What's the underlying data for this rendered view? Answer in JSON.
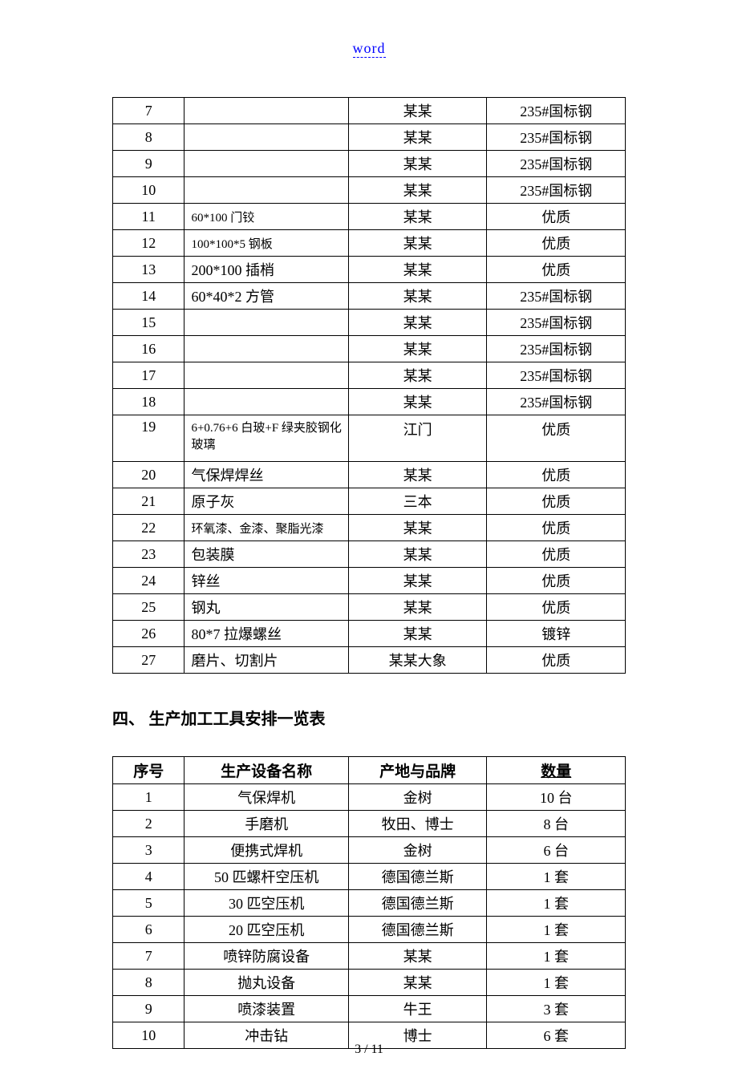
{
  "header": {
    "link_text": "word"
  },
  "table1": {
    "rows": [
      {
        "no": "7",
        "desc": "",
        "desc_small": false,
        "col3": "某某",
        "col4": "235#国标钢"
      },
      {
        "no": "8",
        "desc": "",
        "desc_small": false,
        "col3": "某某",
        "col4": "235#国标钢"
      },
      {
        "no": "9",
        "desc": "",
        "desc_small": false,
        "col3": "某某",
        "col4": "235#国标钢"
      },
      {
        "no": "10",
        "desc": "",
        "desc_small": false,
        "col3": "某某",
        "col4": "235#国标钢"
      },
      {
        "no": "11",
        "desc": "60*100 门铰",
        "desc_small": true,
        "col3": "某某",
        "col4": "优质"
      },
      {
        "no": "12",
        "desc": "100*100*5 钢板",
        "desc_small": true,
        "col3": "某某",
        "col4": "优质"
      },
      {
        "no": "13",
        "desc": "200*100 插梢",
        "desc_small": false,
        "col3": "某某",
        "col4": "优质"
      },
      {
        "no": "14",
        "desc": "60*40*2 方管",
        "desc_small": false,
        "col3": "某某",
        "col4": "235#国标钢"
      },
      {
        "no": "15",
        "desc": "",
        "desc_small": false,
        "col3": "某某",
        "col4": "235#国标钢"
      },
      {
        "no": "16",
        "desc": "",
        "desc_small": false,
        "col3": "某某",
        "col4": "235#国标钢"
      },
      {
        "no": "17",
        "desc": "",
        "desc_small": false,
        "col3": "某某",
        "col4": "235#国标钢"
      },
      {
        "no": "18",
        "desc": "",
        "desc_small": false,
        "col3": "某某",
        "col4": "235#国标钢"
      },
      {
        "no": "19",
        "desc": "6+0.76+6 白玻+F 绿夹胶钢化玻璃",
        "desc_small": true,
        "col3": "江门",
        "col4": "优质",
        "tall": true
      },
      {
        "no": "20",
        "desc": "气保焊焊丝",
        "desc_small": false,
        "col3": "某某",
        "col4": "优质"
      },
      {
        "no": "21",
        "desc": "原子灰",
        "desc_small": false,
        "col3": "三本",
        "col4": "优质"
      },
      {
        "no": "22",
        "desc": "环氧漆、金漆、聚脂光漆",
        "desc_small": true,
        "col3": "某某",
        "col4": "优质"
      },
      {
        "no": "23",
        "desc": "包装膜",
        "desc_small": false,
        "col3": "某某",
        "col4": "优质"
      },
      {
        "no": "24",
        "desc": "锌丝",
        "desc_small": false,
        "col3": "某某",
        "col4": "优质"
      },
      {
        "no": "25",
        "desc": "钢丸",
        "desc_small": false,
        "col3": "某某",
        "col4": "优质"
      },
      {
        "no": "26",
        "desc": "80*7 拉爆螺丝",
        "desc_small": false,
        "col3": "某某",
        "col4": "镀锌"
      },
      {
        "no": "27",
        "desc": "磨片、切割片",
        "desc_small": false,
        "col3": "某某大象",
        "col4": "优质"
      }
    ]
  },
  "section_heading": "四、  生产加工工具安排一览表",
  "table2": {
    "headers": {
      "c1": "序号",
      "c2": "生产设备名称",
      "c3": "产地与品牌",
      "c4": "数量"
    },
    "rows": [
      {
        "no": "1",
        "name": "气保焊机",
        "brand": "金树",
        "qty": "10 台"
      },
      {
        "no": "2",
        "name": "手磨机",
        "brand": "牧田、博士",
        "qty": "8 台"
      },
      {
        "no": "3",
        "name": "便携式焊机",
        "brand": "金树",
        "qty": "6 台"
      },
      {
        "no": "4",
        "name": "50 匹螺杆空压机",
        "brand": "德国德兰斯",
        "qty": "1 套"
      },
      {
        "no": "5",
        "name": "30 匹空压机",
        "brand": "德国德兰斯",
        "qty": "1 套"
      },
      {
        "no": "6",
        "name": "20 匹空压机",
        "brand": "德国德兰斯",
        "qty": "1 套"
      },
      {
        "no": "7",
        "name": "喷锌防腐设备",
        "brand": "某某",
        "qty": "1 套"
      },
      {
        "no": "8",
        "name": "抛丸设备",
        "brand": "某某",
        "qty": "1 套"
      },
      {
        "no": "9",
        "name": "喷漆装置",
        "brand": "牛王",
        "qty": "3 套"
      },
      {
        "no": "10",
        "name": "冲击钻",
        "brand": "博士",
        "qty": "6 套"
      }
    ]
  },
  "footer": {
    "page_info": "3 / 11"
  }
}
